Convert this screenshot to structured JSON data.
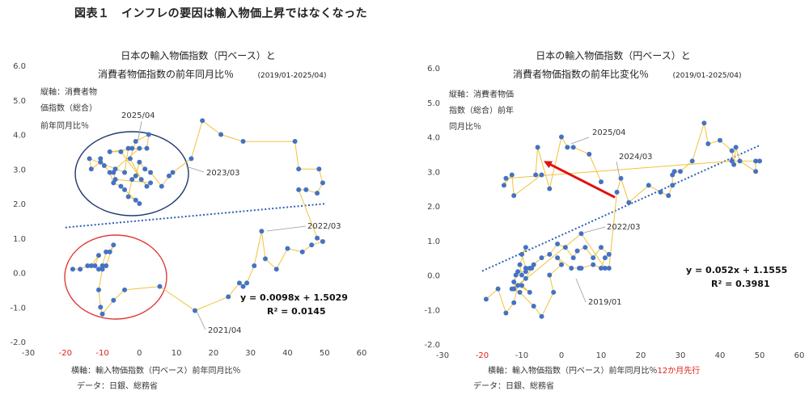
{
  "figure_title": "図表１　インフレの要因は輸入物価上昇ではなくなった",
  "colors": {
    "line": "#f0c23a",
    "point": "#4472c4",
    "trend": "#2d5fb4",
    "circle_blue": "#1f3a6e",
    "circle_red": "#e23a3a",
    "arrow": "#e01010",
    "red_text": "#e0201a"
  },
  "chart_data": [
    {
      "type": "scatter",
      "title_line1": "日本の輸入物価指数（円ベース）と",
      "title_line2": "消費者物価指数の前年同月比％",
      "period": "(2019/01-2025/04)",
      "ylabel_lines": [
        "縦軸：消費者物",
        "価指数（総合）",
        "前年同月比％"
      ],
      "xlabel": "横軸：輸入物価指数（円ベース）前年同月比％",
      "xlabel_red": "",
      "source": "データ：日銀、総務省",
      "xlim": [
        -30,
        60
      ],
      "ylim": [
        -2.0,
        6.0
      ],
      "xticks": [
        "-30",
        "-20",
        "-10",
        "0",
        "10",
        "20",
        "30",
        "40",
        "50",
        "60"
      ],
      "yticks": [
        "-2.0",
        "-1.0",
        "0.0",
        "1.0",
        "2.0",
        "3.0",
        "4.0",
        "5.0",
        "6.0"
      ],
      "red_xticks": [
        "-20",
        "-10"
      ],
      "points": [
        [
          -18.0,
          0.1
        ],
        [
          -16.0,
          0.1
        ],
        [
          -14.0,
          0.2
        ],
        [
          -12.0,
          0.2
        ],
        [
          -11.0,
          0.5
        ],
        [
          -13.0,
          0.2
        ],
        [
          -11.0,
          0.1
        ],
        [
          -10.0,
          0.2
        ],
        [
          -9.0,
          0.6
        ],
        [
          -8.0,
          0.6
        ],
        [
          -7.0,
          0.8
        ],
        [
          -9.0,
          0.2
        ],
        [
          -10.0,
          0.1
        ],
        [
          -11.0,
          -0.5
        ],
        [
          -10.5,
          -1.0
        ],
        [
          -10.0,
          -1.2
        ],
        [
          -7.0,
          -0.8
        ],
        [
          -4.0,
          -0.5
        ],
        [
          5.5,
          -0.4
        ],
        [
          15.0,
          -1.1
        ],
        [
          24.0,
          -0.7
        ],
        [
          27.0,
          -0.3
        ],
        [
          28.0,
          -0.4
        ],
        [
          29.0,
          -0.3
        ],
        [
          31.0,
          0.2
        ],
        [
          33.0,
          1.2
        ],
        [
          34.0,
          0.4
        ],
        [
          37.0,
          0.1
        ],
        [
          40.0,
          0.7
        ],
        [
          44.0,
          0.6
        ],
        [
          46.5,
          0.8
        ],
        [
          49.5,
          0.9
        ],
        [
          48.0,
          1.0
        ],
        [
          43.0,
          2.4
        ],
        [
          45.0,
          2.4
        ],
        [
          48.0,
          2.3
        ],
        [
          49.5,
          2.6
        ],
        [
          48.5,
          3.0
        ],
        [
          43.0,
          3.0
        ],
        [
          42.0,
          3.8
        ],
        [
          28.0,
          3.8
        ],
        [
          22.0,
          4.0
        ],
        [
          17.0,
          4.4
        ],
        [
          14.0,
          3.3
        ],
        [
          9.0,
          2.9
        ],
        [
          8.0,
          2.8
        ],
        [
          6.0,
          2.5
        ],
        [
          3.0,
          2.9
        ],
        [
          1.5,
          3.0
        ],
        [
          0.0,
          3.2
        ],
        [
          -1.0,
          2.8
        ],
        [
          -2.0,
          2.7
        ],
        [
          -3.0,
          2.2
        ],
        [
          -1.0,
          2.1
        ],
        [
          0.0,
          2.0
        ],
        [
          -4.0,
          2.4
        ],
        [
          -5.0,
          2.5
        ],
        [
          -7.0,
          2.6
        ],
        [
          -8.0,
          2.9
        ],
        [
          -9.5,
          3.1
        ],
        [
          -10.5,
          3.3
        ],
        [
          -10.5,
          3.2
        ],
        [
          -13.0,
          3.0
        ],
        [
          -13.5,
          3.3
        ],
        [
          -4.0,
          2.9
        ],
        [
          -3.0,
          3.6
        ],
        [
          -2.0,
          3.6
        ],
        [
          2.0,
          3.6
        ],
        [
          2.5,
          4.0
        ],
        [
          -1.0,
          3.8
        ],
        [
          -2.5,
          3.3
        ],
        [
          0.5,
          2.7
        ],
        [
          2.0,
          2.5
        ],
        [
          -5.0,
          3.5
        ],
        [
          -8.0,
          3.5
        ],
        [
          0.0,
          3.6
        ],
        [
          -6.5,
          3.0
        ],
        [
          -7.0,
          2.9
        ],
        [
          -6.5,
          2.7
        ],
        [
          3.0,
          2.6
        ]
      ],
      "trend": {
        "slope": 0.0098,
        "intercept": 1.5029,
        "x_from": -20,
        "x_to": 50
      },
      "equation": "y = 0.0098x + 1.5029",
      "r2": "R² = 0.0145",
      "annotations": [
        {
          "label": "2025/04"
        },
        {
          "label": "2023/03"
        },
        {
          "label": "2022/03"
        },
        {
          "label": "2021/04"
        }
      ]
    },
    {
      "type": "scatter",
      "title_line1": "日本の輸入物価指数（円ベース）と",
      "title_line2": "消費者物価指数の前年比変化％",
      "period": "(2019/01-2025/04)",
      "ylabel_lines": [
        "縦軸：消費者物価",
        "指数（総合）前年",
        "同月比％"
      ],
      "xlabel": "横軸：輸入物価指数（円ベース）前年同月比％",
      "xlabel_red": "12か月先行",
      "source": "データ：日銀、総務省",
      "xlim": [
        -30,
        60
      ],
      "ylim": [
        -2.0,
        6.0
      ],
      "xticks": [
        "-30",
        "-20",
        "-10",
        "0",
        "10",
        "20",
        "30",
        "40",
        "50",
        "60"
      ],
      "yticks": [
        "-2.0",
        "-1.0",
        "0.0",
        "1.0",
        "2.0",
        "3.0",
        "4.0",
        "5.0",
        "6.0"
      ],
      "red_xticks": [
        "-20"
      ],
      "points": [
        [
          -19.0,
          -0.7
        ],
        [
          -16.0,
          -0.4
        ],
        [
          -14.0,
          -1.1
        ],
        [
          -12.0,
          -0.8
        ],
        [
          -11.0,
          -0.3
        ],
        [
          -10.0,
          -0.3
        ],
        [
          -8.0,
          -0.5
        ],
        [
          -12.0,
          -0.2
        ],
        [
          -11.0,
          0.1
        ],
        [
          -9.0,
          0.1
        ],
        [
          -8.0,
          0.2
        ],
        [
          -7.5,
          0.2
        ],
        [
          -9.0,
          -0.1
        ],
        [
          -12.5,
          -0.4
        ],
        [
          -10.5,
          -0.5
        ],
        [
          -7.0,
          -0.9
        ],
        [
          -5.0,
          -1.2
        ],
        [
          -2.0,
          -0.5
        ],
        [
          -3.0,
          0.0
        ],
        [
          0.0,
          0.3
        ],
        [
          -1.0,
          0.5
        ],
        [
          2.5,
          0.2
        ],
        [
          4.5,
          0.2
        ],
        [
          5.0,
          0.2
        ],
        [
          8.0,
          0.3
        ],
        [
          10.0,
          0.2
        ],
        [
          11.0,
          0.5
        ],
        [
          12.0,
          0.6
        ],
        [
          10.0,
          0.8
        ],
        [
          8.0,
          0.5
        ],
        [
          6.0,
          0.8
        ],
        [
          4.0,
          0.7
        ],
        [
          3.0,
          0.5
        ],
        [
          1.0,
          0.8
        ],
        [
          -1.0,
          0.9
        ],
        [
          -3.0,
          0.6
        ],
        [
          -5.0,
          0.5
        ],
        [
          -7.0,
          0.3
        ],
        [
          -9.0,
          0.2
        ],
        [
          -10.0,
          0.6
        ],
        [
          -9.0,
          0.8
        ],
        [
          -10.5,
          0.3
        ],
        [
          -10.0,
          0.0
        ],
        [
          -11.5,
          0.0
        ],
        [
          -12.0,
          -0.4
        ],
        [
          5.0,
          1.2
        ],
        [
          11.0,
          0.2
        ],
        [
          12.0,
          0.2
        ],
        [
          14.0,
          2.4
        ],
        [
          15.0,
          2.8
        ],
        [
          17.0,
          2.1
        ],
        [
          22.0,
          2.6
        ],
        [
          25.0,
          2.4
        ],
        [
          27.0,
          2.3
        ],
        [
          28.0,
          2.6
        ],
        [
          28.0,
          2.9
        ],
        [
          28.5,
          3.0
        ],
        [
          30.0,
          3.0
        ],
        [
          33.0,
          3.3
        ],
        [
          36.0,
          4.4
        ],
        [
          37.0,
          3.8
        ],
        [
          40.0,
          3.9
        ],
        [
          43.0,
          3.6
        ],
        [
          43.5,
          3.2
        ],
        [
          44.0,
          3.7
        ],
        [
          45.0,
          3.3
        ],
        [
          49.0,
          3.0
        ],
        [
          49.0,
          3.3
        ],
        [
          50.0,
          3.3
        ],
        [
          43.0,
          3.3
        ],
        [
          -14.0,
          2.8
        ],
        [
          -14.5,
          2.6
        ],
        [
          -12.5,
          2.9
        ],
        [
          -12.0,
          2.3
        ],
        [
          -5.0,
          2.9
        ],
        [
          -6.5,
          2.9
        ],
        [
          -6.0,
          3.7
        ],
        [
          -3.0,
          2.5
        ],
        [
          0.0,
          4.0
        ],
        [
          1.5,
          3.7
        ],
        [
          3.0,
          3.7
        ],
        [
          7.0,
          3.5
        ],
        [
          10.0,
          2.7
        ]
      ],
      "trend": {
        "slope": 0.052,
        "intercept": 1.1555,
        "x_from": -20,
        "x_to": 50
      },
      "equation": "y = 0.052x + 1.1555",
      "r2": "R² = 0.3981",
      "annotations": [
        {
          "label": "2025/04"
        },
        {
          "label": "2024/03"
        },
        {
          "label": "2022/03"
        },
        {
          "label": "2019/01"
        }
      ]
    }
  ]
}
